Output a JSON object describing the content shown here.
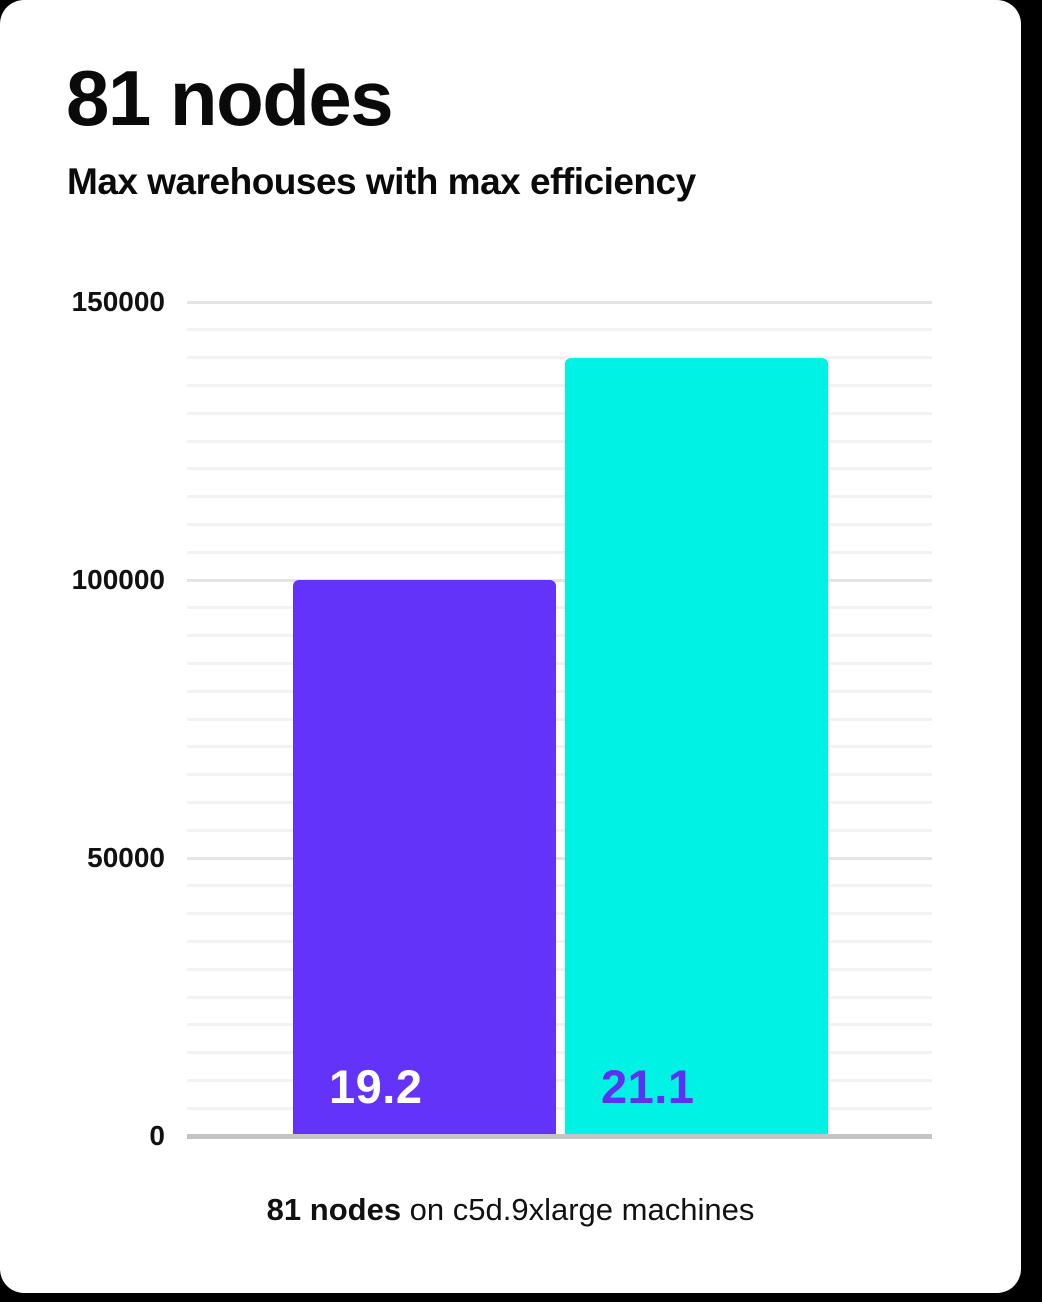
{
  "header": {
    "title": "81 nodes",
    "subtitle": "Max warehouses with max efficiency"
  },
  "chart_data": {
    "type": "bar",
    "title": "81 nodes",
    "subtitle": "Max warehouses with max efficiency",
    "categories": [
      "19.2",
      "21.1"
    ],
    "values": [
      100000,
      140000
    ],
    "bars": [
      {
        "label": "19.2",
        "value": 100000,
        "color": "#6433fa",
        "label_color": "#ffffff"
      },
      {
        "label": "21.1",
        "value": 140000,
        "color": "#00f2e4",
        "label_color": "#6030f2"
      }
    ],
    "xlabel": "",
    "ylabel": "",
    "ylim": [
      0,
      150000
    ],
    "yticks": [
      150000,
      100000,
      50000,
      0
    ],
    "minor_grid_step": 5000,
    "major_grid_step": 50000,
    "grid": true,
    "legend": false,
    "bar_label_position": "inside-bottom",
    "caption": "81 nodes on c5d.9xlarge machines"
  },
  "caption": {
    "bold": "81 nodes",
    "rest": " on c5d.9xlarge machines"
  },
  "colors": {
    "page_background": "#000000",
    "card_background": "#ffffff",
    "text": "#0a0a0a",
    "grid_minor": "#f2f2f2",
    "grid_major": "#e4e4e4",
    "axis_line": "#c4c4c4",
    "bar_1": "#6433fa",
    "bar_2": "#00f2e4"
  }
}
